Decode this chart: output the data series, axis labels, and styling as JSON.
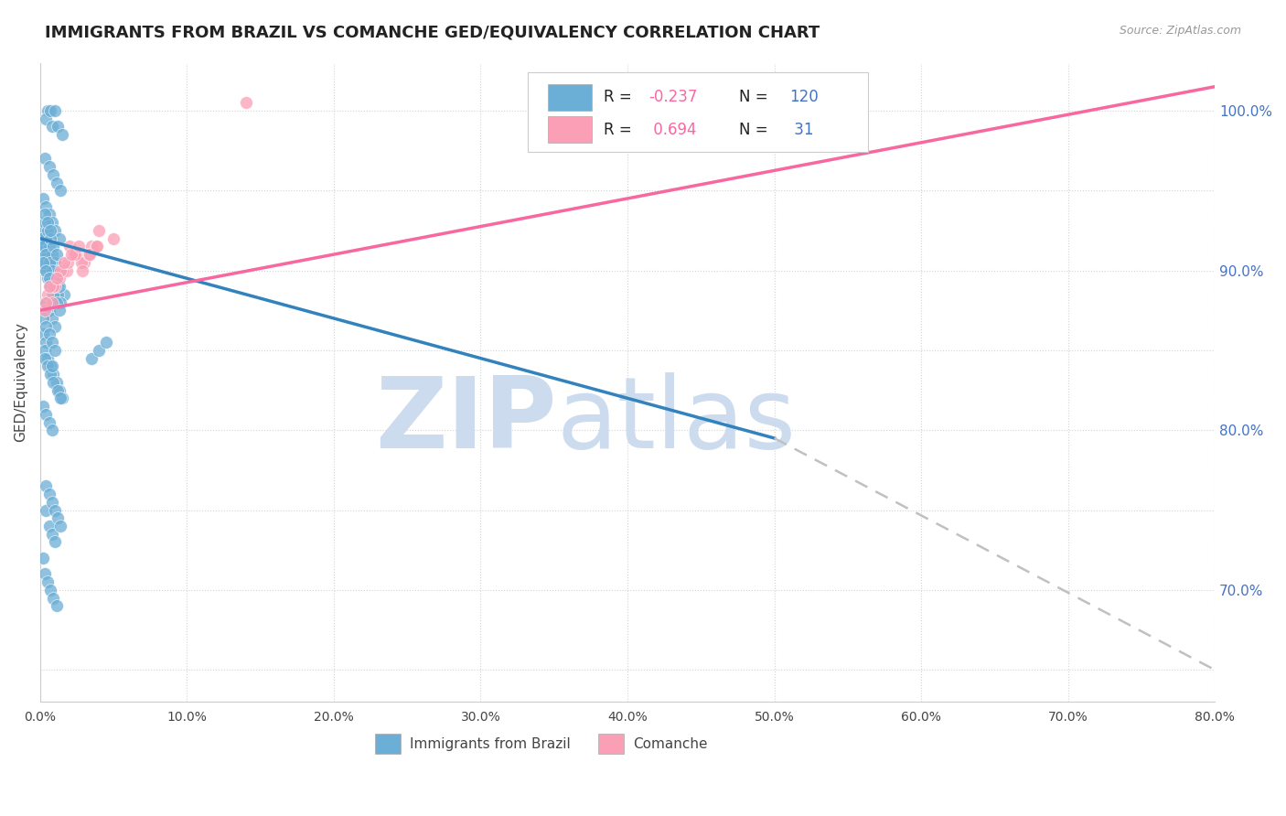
{
  "title": "IMMIGRANTS FROM BRAZIL VS COMANCHE GED/EQUIVALENCY CORRELATION CHART",
  "source": "Source: ZipAtlas.com",
  "ylabel": "GED/Equivalency",
  "right_yticks": [
    100.0,
    90.0,
    80.0,
    70.0
  ],
  "right_ytick_labels": [
    "100.0%",
    "90.0%",
    "80.0%",
    "70.0%"
  ],
  "blue_color": "#6baed6",
  "pink_color": "#fa9fb5",
  "blue_line_color": "#3182bd",
  "pink_line_color": "#f768a1",
  "dashed_line_color": "#c0c0c0",
  "watermark_zip_color": "#ccdcee",
  "watermark_atlas_color": "#ccdcee",
  "background_color": "#ffffff",
  "brazil_x": [
    0.2,
    0.5,
    0.4,
    0.7,
    1.0,
    0.8,
    1.2,
    1.5,
    0.3,
    0.6,
    0.9,
    1.1,
    1.4,
    0.2,
    0.4,
    0.6,
    0.8,
    1.0,
    1.3,
    0.1,
    0.3,
    0.5,
    0.7,
    0.9,
    1.2,
    1.6,
    0.4,
    0.6,
    0.8,
    1.0,
    0.2,
    0.4,
    0.3,
    0.5,
    0.7,
    0.9,
    1.1,
    1.3,
    1.5,
    0.2,
    0.3,
    0.5,
    0.6,
    0.8,
    1.0,
    1.2,
    1.4,
    0.1,
    0.2,
    0.4,
    0.5,
    0.7,
    0.9,
    1.1,
    1.3,
    0.2,
    0.4,
    0.6,
    0.8,
    1.0,
    0.3,
    0.5,
    0.7,
    0.9,
    1.2,
    1.4,
    0.1,
    0.3,
    0.5,
    0.7,
    0.9,
    1.1,
    1.3,
    0.2,
    0.4,
    0.6,
    0.8,
    1.0,
    1.2,
    0.1,
    0.2,
    0.4,
    0.6,
    0.8,
    1.0,
    0.3,
    0.5,
    0.7,
    0.9,
    1.1,
    0.2,
    0.4,
    0.6,
    0.8,
    3.5,
    4.0,
    4.5,
    0.3,
    0.5,
    0.7,
    0.4,
    0.6,
    0.8,
    1.0,
    0.2,
    0.3,
    0.5,
    0.7,
    0.9,
    1.1,
    0.4,
    0.6,
    0.8,
    1.0,
    1.2,
    1.4,
    0.2,
    0.4,
    0.6,
    0.8
  ],
  "brazil_y": [
    91.0,
    100.0,
    99.5,
    100.0,
    100.0,
    99.0,
    99.0,
    98.5,
    97.0,
    96.5,
    96.0,
    95.5,
    95.0,
    94.5,
    94.0,
    93.5,
    93.0,
    92.5,
    92.0,
    91.5,
    91.0,
    90.5,
    90.0,
    89.5,
    89.0,
    88.5,
    88.0,
    87.5,
    87.0,
    86.5,
    86.0,
    85.5,
    85.0,
    84.5,
    84.0,
    83.5,
    83.0,
    82.5,
    82.0,
    91.5,
    91.0,
    90.5,
    90.0,
    89.5,
    89.0,
    88.5,
    88.0,
    91.0,
    90.5,
    90.0,
    89.5,
    89.0,
    88.5,
    88.0,
    87.5,
    87.0,
    86.5,
    86.0,
    85.5,
    85.0,
    84.5,
    84.0,
    83.5,
    83.0,
    82.5,
    82.0,
    92.0,
    91.5,
    91.0,
    90.5,
    90.0,
    89.5,
    89.0,
    92.5,
    92.0,
    91.5,
    91.0,
    90.5,
    90.0,
    92.0,
    91.5,
    91.0,
    90.5,
    90.0,
    89.5,
    93.0,
    92.5,
    92.0,
    91.5,
    91.0,
    90.5,
    90.0,
    89.5,
    84.0,
    84.5,
    85.0,
    85.5,
    93.5,
    93.0,
    92.5,
    75.0,
    74.0,
    73.5,
    73.0,
    72.0,
    71.0,
    70.5,
    70.0,
    69.5,
    69.0,
    76.5,
    76.0,
    75.5,
    75.0,
    74.5,
    74.0,
    81.5,
    81.0,
    80.5,
    80.0
  ],
  "comanche_x": [
    0.5,
    1.0,
    1.5,
    2.0,
    2.5,
    3.0,
    3.5,
    4.0,
    5.0,
    0.3,
    0.8,
    1.3,
    1.8,
    2.3,
    2.8,
    3.3,
    3.8,
    0.4,
    0.9,
    1.4,
    1.9,
    2.4,
    2.9,
    3.4,
    3.9,
    0.6,
    1.1,
    1.6,
    2.1,
    2.6,
    14.0
  ],
  "comanche_y": [
    88.5,
    89.0,
    90.0,
    91.5,
    91.0,
    90.5,
    91.5,
    92.5,
    92.0,
    87.5,
    88.0,
    89.5,
    90.0,
    91.0,
    90.5,
    91.0,
    91.5,
    88.0,
    89.0,
    90.0,
    90.5,
    91.0,
    90.0,
    91.0,
    91.5,
    89.0,
    89.5,
    90.5,
    91.0,
    91.5,
    100.5
  ],
  "x_min": 0.0,
  "x_max": 80.0,
  "y_min": 63.0,
  "y_max": 103.0,
  "blue_line_x0": 0.0,
  "blue_line_y0": 92.0,
  "blue_line_x1": 50.0,
  "blue_line_y1": 79.5,
  "dash_line_x0": 50.0,
  "dash_line_y0": 79.5,
  "dash_line_x1": 80.0,
  "dash_line_y1": 65.0,
  "pink_line_x0": 0.0,
  "pink_line_y0": 87.5,
  "pink_line_x1": 80.0,
  "pink_line_y1": 101.5
}
